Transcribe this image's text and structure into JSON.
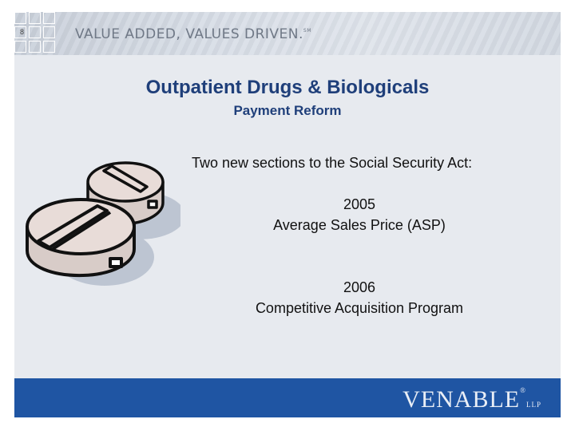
{
  "header": {
    "slide_number": "8",
    "tagline": "VALUE ADDED, VALUES DRIVEN.",
    "tagline_mark": "SM"
  },
  "content": {
    "title": "Outpatient Drugs & Biologicals",
    "subtitle": "Payment Reform",
    "intro": "Two new sections to the Social Security Act:",
    "items": [
      {
        "year": "2005",
        "label": "Average Sales Price (ASP)"
      },
      {
        "year": "2006",
        "label": "Competitive Acquisition Program"
      }
    ]
  },
  "footer": {
    "logo": "VENABLE",
    "logo_mark": "®",
    "logo_suffix": "LLP"
  },
  "colors": {
    "title": "#1f3f7a",
    "footer": "#1f55a3",
    "pill_fill": "#e8dcd8",
    "pill_shadow": "#bdc5d2"
  },
  "illustration": {
    "icon": "pills-icon"
  }
}
